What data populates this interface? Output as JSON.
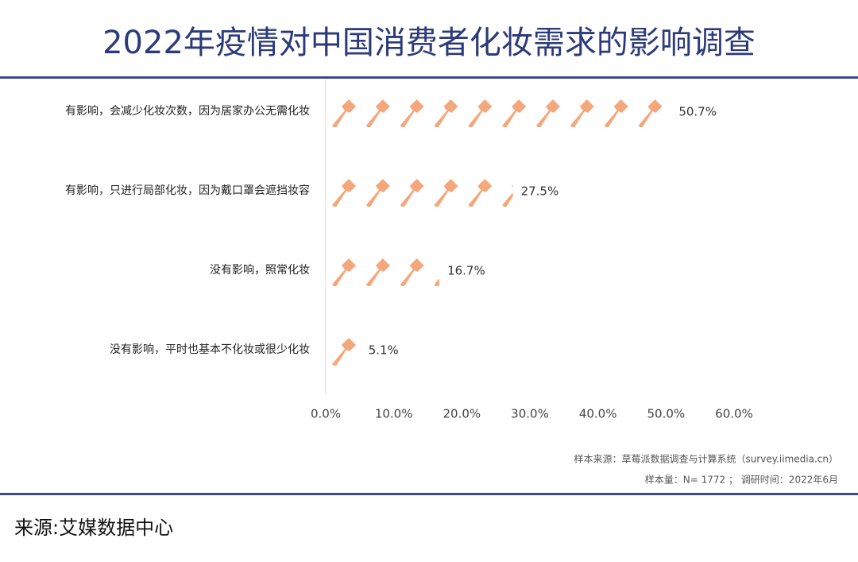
{
  "chart_data": {
    "type": "bar",
    "orientation": "horizontal",
    "title": "2022年疫情对中国消费者化妆需求的影响调查",
    "categories": [
      "有影响，会减少化妆次数，因为居家办公无需化妆",
      "有影响，只进行局部化妆，因为戴口罩会遮挡妆容",
      "没有影响，照常化妆",
      "没有影响，平时也基本不化妆或很少化妆"
    ],
    "values": [
      50.7,
      27.5,
      16.7,
      5.1
    ],
    "value_labels": [
      "50.7%",
      "27.5%",
      "16.7%",
      "5.1%"
    ],
    "color": "#f4a77a",
    "xlim": [
      0,
      60
    ],
    "xticks": [
      {
        "value": 0,
        "label": "0.0%"
      },
      {
        "value": 10,
        "label": "10.0%"
      },
      {
        "value": 20,
        "label": "20.0%"
      },
      {
        "value": 30,
        "label": "30.0%"
      },
      {
        "value": 40,
        "label": "40.0%"
      },
      {
        "value": 50,
        "label": "50.0%"
      },
      {
        "value": 60,
        "label": "60.0%"
      }
    ],
    "notes": [
      "样本来源：草莓派数据调查与计算系统（survey.iimedia.cn）",
      "样本量：N= 1772 ； 调研时间：2022年6月"
    ],
    "source": "来源:艾媒数据中心"
  }
}
